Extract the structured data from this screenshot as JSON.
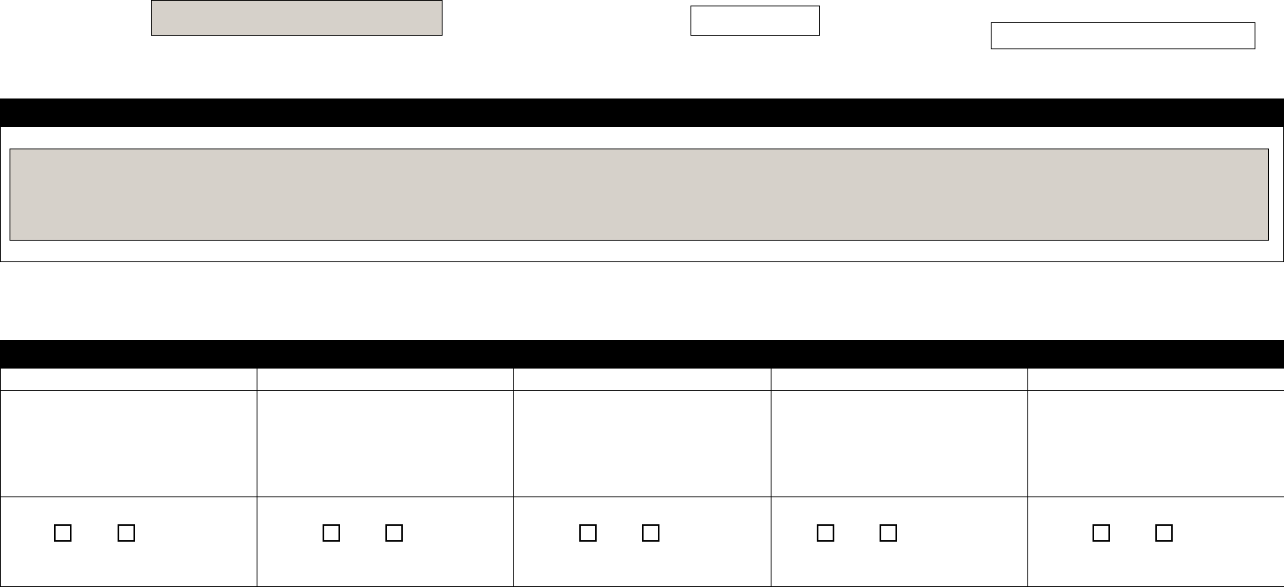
{
  "colors": {
    "field_fill": "#d6d1ca",
    "section_bar": "#000000",
    "border": "#000000"
  },
  "header": {
    "field_1": "",
    "field_2": "",
    "field_3": ""
  },
  "section_1": {
    "title": "",
    "text_area": ""
  },
  "section_2": {
    "title": "",
    "columns": [
      {
        "header": "",
        "content": "",
        "checkboxes": [
          false,
          false
        ]
      },
      {
        "header": "",
        "content": "",
        "checkboxes": [
          false,
          false
        ]
      },
      {
        "header": "",
        "content": "",
        "checkboxes": [
          false,
          false
        ]
      },
      {
        "header": "",
        "content": "",
        "checkboxes": [
          false,
          false
        ]
      },
      {
        "header": "",
        "content": "",
        "checkboxes": [
          false,
          false
        ]
      }
    ]
  }
}
